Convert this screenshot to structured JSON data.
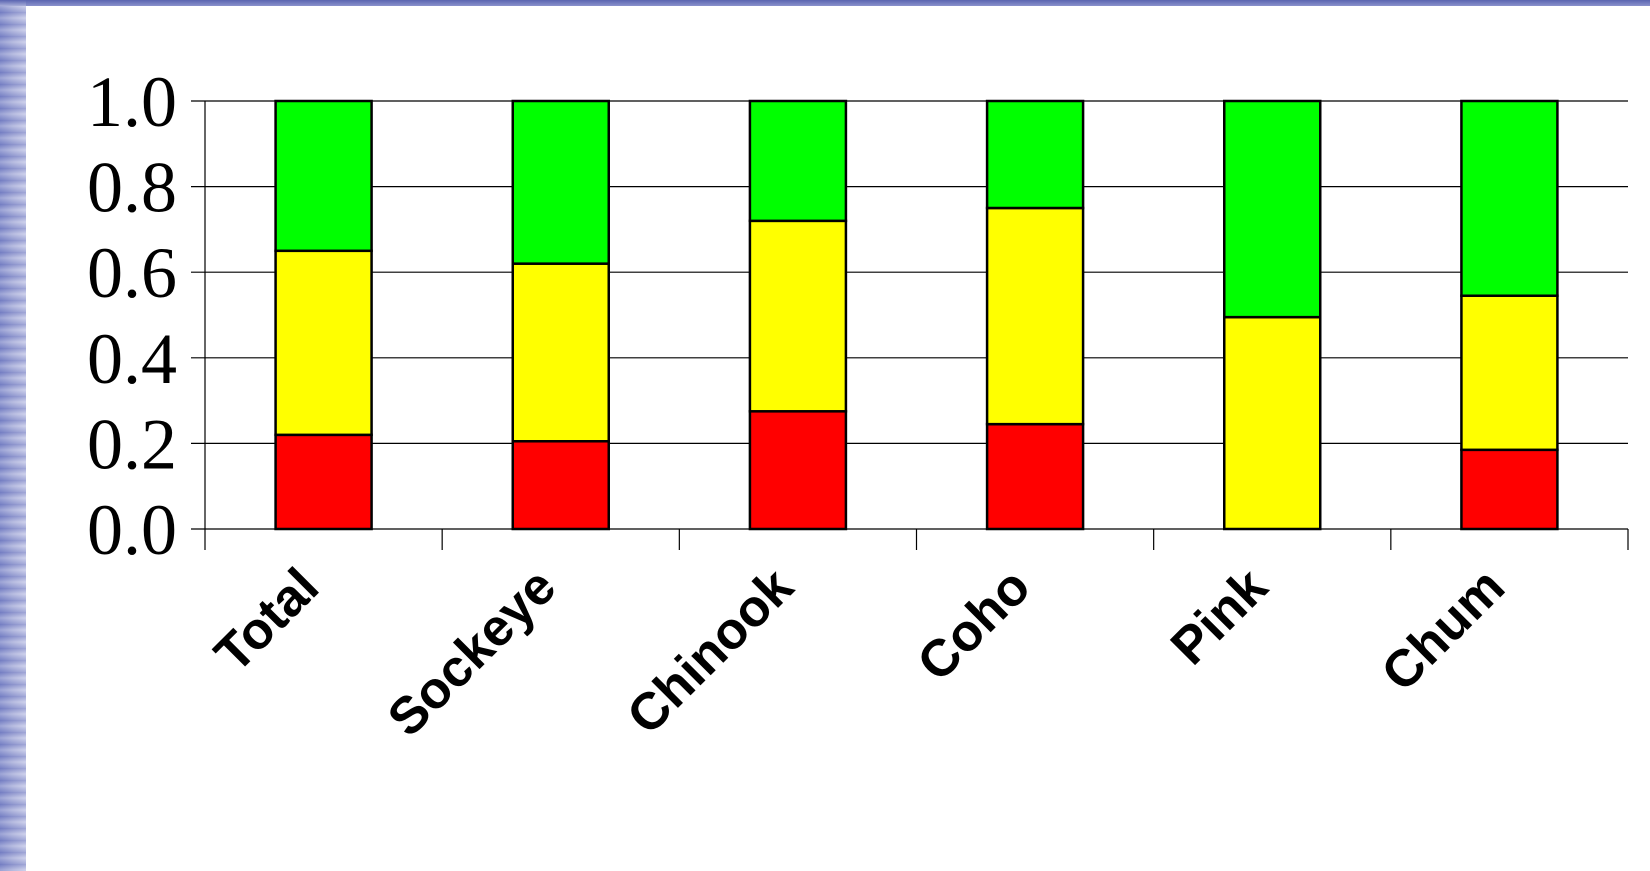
{
  "colors": {
    "background": "#ffffff",
    "grid": "#000000",
    "bar_outline": "#000000"
  },
  "chart_data": {
    "type": "bar",
    "stacked": true,
    "title": "",
    "xlabel": "",
    "ylabel": "",
    "ylim": [
      0,
      1.0
    ],
    "yticks": [
      "0.0",
      "0.2",
      "0.4",
      "0.6",
      "0.8",
      "1.0"
    ],
    "grid": "horizontal",
    "legend": "none",
    "categories": [
      "Total",
      "Sockeye",
      "Chinook",
      "Coho",
      "Pink",
      "Chum"
    ],
    "series": [
      {
        "color": "#ff0000",
        "values": [
          0.22,
          0.205,
          0.275,
          0.245,
          0.0,
          0.185
        ]
      },
      {
        "color": "#ffff00",
        "values": [
          0.43,
          0.415,
          0.445,
          0.505,
          0.495,
          0.36
        ]
      },
      {
        "color": "#00ff00",
        "values": [
          0.35,
          0.38,
          0.28,
          0.25,
          0.505,
          0.455
        ]
      }
    ]
  }
}
